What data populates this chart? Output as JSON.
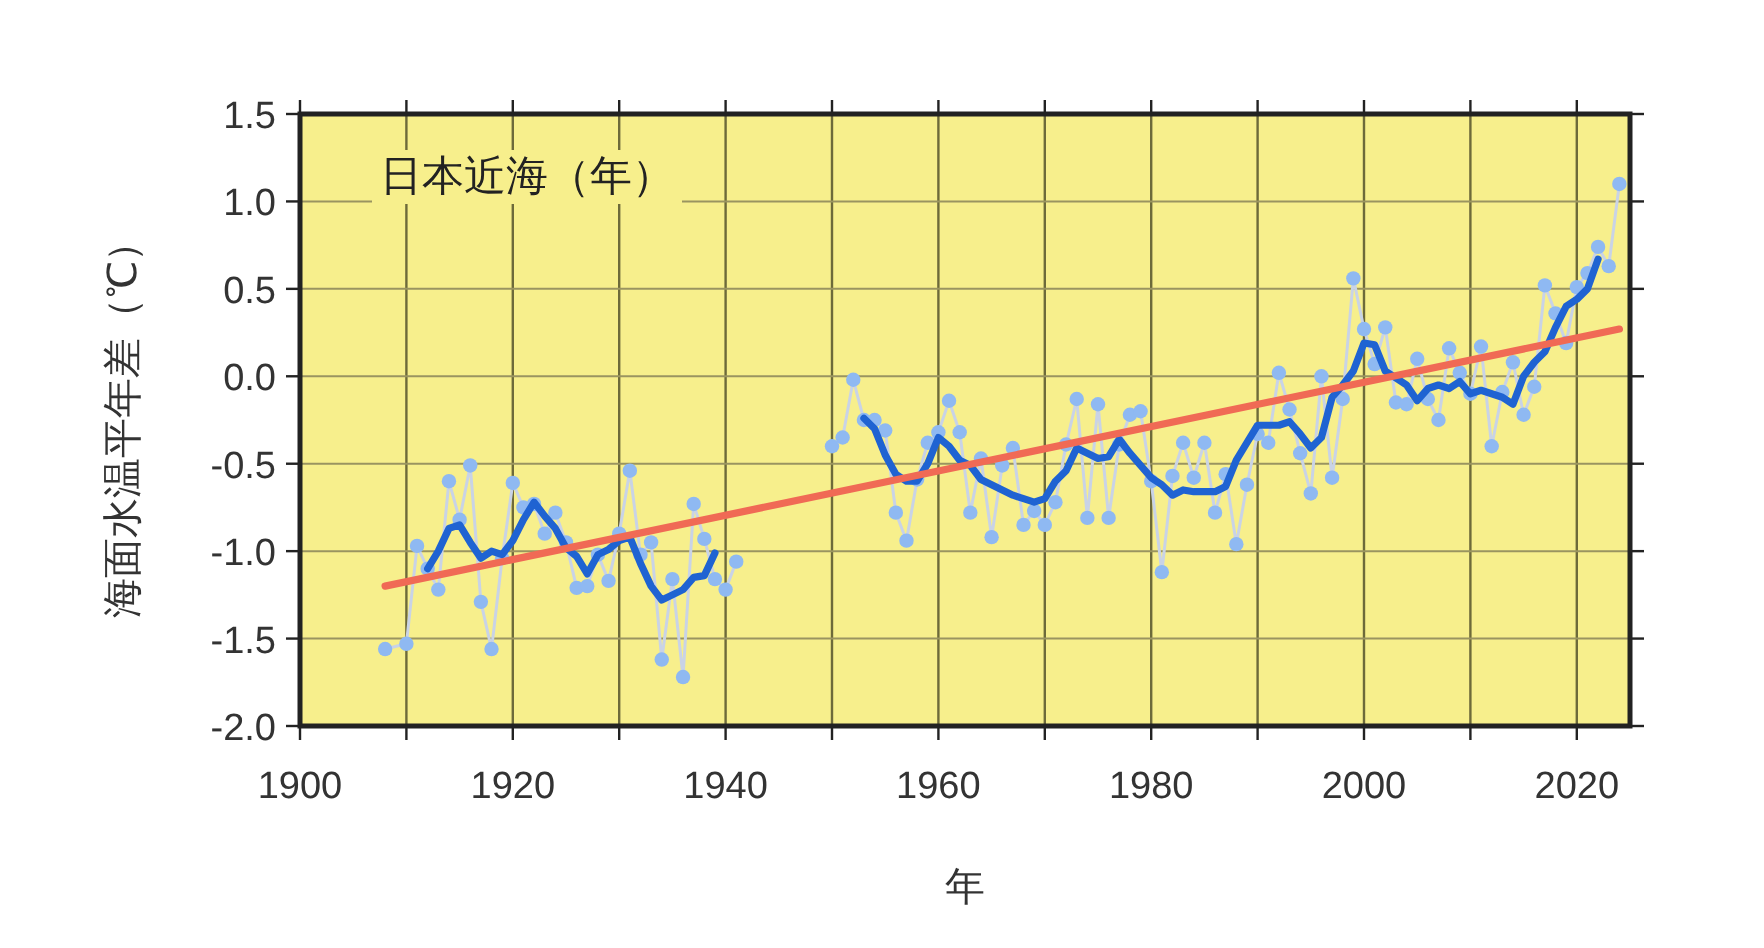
{
  "chart_data": {
    "type": "line",
    "title": "日本近海（年）",
    "xlabel": "年",
    "ylabel": "海面水温平年差（℃）",
    "xlim": [
      1900,
      2025
    ],
    "ylim": [
      -2,
      1.5
    ],
    "xticks": [
      1900,
      {
        "value": 1910,
        "label": null
      },
      1920,
      {
        "value": 1930,
        "label": null
      },
      1940,
      {
        "value": 1950,
        "label": null
      },
      1960,
      {
        "value": 1970,
        "label": null
      },
      1980,
      {
        "value": 1990,
        "label": null
      },
      2000,
      {
        "value": 2010,
        "label": null
      },
      2020
    ],
    "yticks": [
      {
        "value": -2,
        "label": "-2.0"
      },
      -1.5,
      {
        "value": -1,
        "label": "-1.0"
      },
      -0.5,
      {
        "value": 0,
        "label": "0.0"
      },
      0.5,
      {
        "value": 1,
        "label": "1.0"
      },
      1.5
    ],
    "grid": true,
    "series": [
      {
        "color": "#8fb9f2",
        "marker": "circle",
        "x": [
          1908,
          1910,
          1911,
          1912,
          1913,
          1914,
          1915,
          1916,
          1917,
          1918,
          1919,
          1920,
          1921,
          1922,
          1923,
          1924,
          1925,
          1926,
          1927,
          1928,
          1929,
          1930,
          1931,
          1932,
          1933,
          1934,
          1935,
          1936,
          1937,
          1938,
          1939,
          1940,
          1941,
          1945,
          1950,
          1951,
          1952,
          1953,
          1954,
          1955,
          1956,
          1957,
          1958,
          1959,
          1960,
          1961,
          1962,
          1963,
          1964,
          1965,
          1966,
          1967,
          1968,
          1969,
          1970,
          1971,
          1972,
          1973,
          1974,
          1975,
          1976,
          1977,
          1978,
          1979,
          1980,
          1981,
          1982,
          1983,
          1984,
          1985,
          1986,
          1987,
          1988,
          1989,
          1990,
          1991,
          1992,
          1993,
          1994,
          1995,
          1996,
          1997,
          1998,
          1999,
          2000,
          2001,
          2002,
          2003,
          2004,
          2005,
          2006,
          2007,
          2008,
          2009,
          2010,
          2011,
          2012,
          2013,
          2014,
          2015,
          2016,
          2017,
          2018,
          2019,
          2020,
          2021,
          2022,
          2023,
          2024
        ],
        "values": [
          -1.56,
          -1.53,
          -0.97,
          -1.1,
          -1.22,
          -0.6,
          -0.82,
          -0.51,
          -1.29,
          -1.56,
          -1.04,
          -0.61,
          -0.75,
          -0.73,
          -0.9,
          -0.78,
          -0.95,
          -1.21,
          -1.2,
          -1.02,
          -1.17,
          -0.9,
          -0.54,
          -1.02,
          -0.95,
          -1.62,
          -1.16,
          -1.72,
          -0.73,
          -0.93,
          -1.16,
          -1.22,
          -1.06,
          null,
          -0.4,
          -0.35,
          -0.02,
          -0.25,
          -0.25,
          -0.31,
          -0.78,
          -0.94,
          -0.59,
          -0.38,
          -0.32,
          -0.14,
          -0.32,
          -0.78,
          -0.47,
          -0.92,
          -0.51,
          -0.41,
          -0.85,
          -0.77,
          -0.85,
          -0.72,
          -0.39,
          -0.13,
          -0.81,
          -0.16,
          -0.81,
          -0.39,
          -0.22,
          -0.2,
          -0.6,
          -1.12,
          -0.57,
          -0.38,
          -0.58,
          -0.38,
          -0.78,
          -0.56,
          -0.96,
          -0.62,
          -0.33,
          -0.38,
          0.02,
          -0.19,
          -0.44,
          -0.67,
          0.0,
          -0.58,
          -0.13,
          0.56,
          0.27,
          0.07,
          0.28,
          -0.15,
          -0.16,
          0.1,
          -0.13,
          -0.25,
          0.16,
          0.02,
          -0.1,
          0.17,
          -0.4,
          -0.09,
          0.08,
          -0.22,
          -0.06,
          0.52,
          0.36,
          0.19,
          0.51,
          0.59,
          0.74,
          0.63,
          1.1
        ]
      },
      {
        "color": "#1f63d2",
        "marker": "none",
        "x": [
          1912,
          1913,
          1914,
          1915,
          1916,
          1917,
          1918,
          1919,
          1920,
          1921,
          1922,
          1923,
          1924,
          1925,
          1926,
          1927,
          1928,
          1929,
          1930,
          1931,
          1932,
          1933,
          1934,
          1935,
          1936,
          1937,
          1938,
          1939,
          1946,
          1953,
          1954,
          1955,
          1956,
          1957,
          1958,
          1959,
          1960,
          1961,
          1962,
          1963,
          1964,
          1965,
          1966,
          1967,
          1968,
          1969,
          1970,
          1971,
          1972,
          1973,
          1974,
          1975,
          1976,
          1977,
          1978,
          1979,
          1980,
          1981,
          1982,
          1983,
          1984,
          1985,
          1986,
          1987,
          1988,
          1989,
          1990,
          1991,
          1992,
          1993,
          1994,
          1995,
          1996,
          1997,
          1998,
          1999,
          2000,
          2001,
          2002,
          2003,
          2004,
          2005,
          2006,
          2007,
          2008,
          2009,
          2010,
          2011,
          2012,
          2013,
          2014,
          2015,
          2016,
          2017,
          2018,
          2019,
          2020,
          2021,
          2022
        ],
        "values": [
          -1.1,
          -1.0,
          -0.87,
          -0.85,
          -0.95,
          -1.04,
          -1.0,
          -1.02,
          -0.94,
          -0.82,
          -0.72,
          -0.8,
          -0.87,
          -0.98,
          -1.03,
          -1.13,
          -1.02,
          -0.99,
          -0.94,
          -0.92,
          -1.07,
          -1.2,
          -1.28,
          -1.25,
          -1.22,
          -1.15,
          -1.14,
          -1.01,
          null,
          -0.24,
          -0.3,
          -0.45,
          -0.56,
          -0.6,
          -0.6,
          -0.5,
          -0.35,
          -0.4,
          -0.48,
          -0.51,
          -0.59,
          -0.62,
          -0.65,
          -0.68,
          -0.7,
          -0.72,
          -0.7,
          -0.6,
          -0.54,
          -0.41,
          -0.44,
          -0.47,
          -0.46,
          -0.36,
          -0.44,
          -0.51,
          -0.58,
          -0.62,
          -0.68,
          -0.65,
          -0.66,
          -0.66,
          -0.66,
          -0.63,
          -0.48,
          -0.38,
          -0.28,
          -0.28,
          -0.28,
          -0.26,
          -0.33,
          -0.41,
          -0.35,
          -0.12,
          -0.05,
          0.03,
          0.19,
          0.18,
          0.03,
          -0.01,
          -0.05,
          -0.14,
          -0.07,
          -0.05,
          -0.07,
          -0.03,
          -0.1,
          -0.08,
          -0.1,
          -0.12,
          -0.16,
          0.0,
          0.08,
          0.14,
          0.28,
          0.4,
          0.44,
          0.5,
          0.67
        ]
      },
      {
        "color": "#f06a55",
        "marker": "none",
        "x": [
          1908,
          2024
        ],
        "values": [
          -1.2,
          0.27
        ]
      }
    ]
  }
}
